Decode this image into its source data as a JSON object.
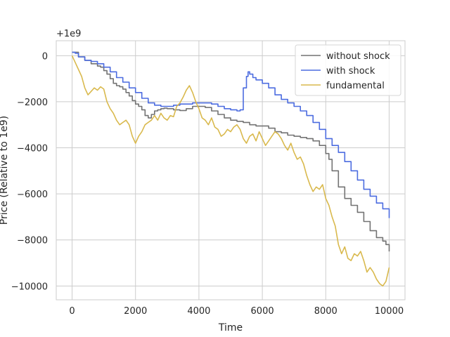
{
  "chart_data": {
    "type": "line",
    "xlabel": "Time",
    "ylabel": "Price (Relative to 1e9)",
    "offset_text": "+1e9",
    "xlim": [
      -500,
      10500
    ],
    "ylim": [
      -10600,
      650
    ],
    "xticks": [
      0,
      2000,
      4000,
      6000,
      8000,
      10000
    ],
    "yticks": [
      0,
      -2000,
      -4000,
      -6000,
      -8000,
      -10000
    ],
    "grid": true,
    "legend_position": "upper-right",
    "series": [
      {
        "name": "without shock",
        "color": "#737373",
        "step": true,
        "points": [
          [
            0,
            150
          ],
          [
            200,
            -50
          ],
          [
            400,
            -200
          ],
          [
            600,
            -350
          ],
          [
            800,
            -450
          ],
          [
            900,
            -500
          ],
          [
            1000,
            -650
          ],
          [
            1100,
            -800
          ],
          [
            1200,
            -1000
          ],
          [
            1300,
            -1200
          ],
          [
            1400,
            -1300
          ],
          [
            1500,
            -1350
          ],
          [
            1600,
            -1450
          ],
          [
            1700,
            -1600
          ],
          [
            1800,
            -1750
          ],
          [
            1900,
            -1950
          ],
          [
            2000,
            -2100
          ],
          [
            2100,
            -2200
          ],
          [
            2200,
            -2350
          ],
          [
            2300,
            -2600
          ],
          [
            2400,
            -2700
          ],
          [
            2500,
            -2550
          ],
          [
            2600,
            -2400
          ],
          [
            2700,
            -2350
          ],
          [
            2800,
            -2300
          ],
          [
            2900,
            -2280
          ],
          [
            3000,
            -2300
          ],
          [
            3200,
            -2350
          ],
          [
            3400,
            -2380
          ],
          [
            3600,
            -2300
          ],
          [
            3800,
            -2200
          ],
          [
            4000,
            -2200
          ],
          [
            4200,
            -2250
          ],
          [
            4400,
            -2400
          ],
          [
            4600,
            -2550
          ],
          [
            4800,
            -2700
          ],
          [
            5000,
            -2800
          ],
          [
            5200,
            -2850
          ],
          [
            5400,
            -2900
          ],
          [
            5600,
            -3000
          ],
          [
            5800,
            -3050
          ],
          [
            6000,
            -3050
          ],
          [
            6200,
            -3150
          ],
          [
            6400,
            -3300
          ],
          [
            6600,
            -3350
          ],
          [
            6800,
            -3450
          ],
          [
            7000,
            -3500
          ],
          [
            7200,
            -3550
          ],
          [
            7400,
            -3600
          ],
          [
            7600,
            -3700
          ],
          [
            7800,
            -3900
          ],
          [
            8000,
            -4250
          ],
          [
            8100,
            -4500
          ],
          [
            8200,
            -5000
          ],
          [
            8400,
            -5700
          ],
          [
            8600,
            -6200
          ],
          [
            8800,
            -6500
          ],
          [
            9000,
            -6800
          ],
          [
            9200,
            -7200
          ],
          [
            9400,
            -7600
          ],
          [
            9600,
            -7900
          ],
          [
            9800,
            -8050
          ],
          [
            9900,
            -8200
          ],
          [
            10000,
            -8500
          ]
        ]
      },
      {
        "name": "with shock",
        "color": "#4c6ce0",
        "step": true,
        "points": [
          [
            0,
            150
          ],
          [
            100,
            100
          ],
          [
            200,
            -50
          ],
          [
            400,
            -200
          ],
          [
            600,
            -250
          ],
          [
            800,
            -350
          ],
          [
            1000,
            -500
          ],
          [
            1200,
            -700
          ],
          [
            1400,
            -950
          ],
          [
            1600,
            -1150
          ],
          [
            1800,
            -1400
          ],
          [
            2000,
            -1600
          ],
          [
            2200,
            -1850
          ],
          [
            2400,
            -2050
          ],
          [
            2600,
            -2150
          ],
          [
            2800,
            -2200
          ],
          [
            3000,
            -2200
          ],
          [
            3200,
            -2150
          ],
          [
            3400,
            -2100
          ],
          [
            3600,
            -2100
          ],
          [
            3800,
            -2050
          ],
          [
            4000,
            -2050
          ],
          [
            4200,
            -2050
          ],
          [
            4400,
            -2100
          ],
          [
            4600,
            -2200
          ],
          [
            4800,
            -2300
          ],
          [
            5000,
            -2350
          ],
          [
            5200,
            -2400
          ],
          [
            5300,
            -2350
          ],
          [
            5400,
            -1400
          ],
          [
            5500,
            -900
          ],
          [
            5550,
            -700
          ],
          [
            5600,
            -800
          ],
          [
            5700,
            -950
          ],
          [
            5800,
            -1050
          ],
          [
            6000,
            -1200
          ],
          [
            6200,
            -1400
          ],
          [
            6400,
            -1700
          ],
          [
            6600,
            -1900
          ],
          [
            6800,
            -2050
          ],
          [
            7000,
            -2200
          ],
          [
            7200,
            -2400
          ],
          [
            7400,
            -2600
          ],
          [
            7600,
            -2900
          ],
          [
            7800,
            -3200
          ],
          [
            8000,
            -3600
          ],
          [
            8200,
            -3900
          ],
          [
            8400,
            -4200
          ],
          [
            8600,
            -4600
          ],
          [
            8800,
            -5000
          ],
          [
            9000,
            -5400
          ],
          [
            9200,
            -5800
          ],
          [
            9400,
            -6100
          ],
          [
            9600,
            -6400
          ],
          [
            9800,
            -6650
          ],
          [
            10000,
            -7050
          ]
        ]
      },
      {
        "name": "fundamental",
        "color": "#d9b94d",
        "step": false,
        "points": [
          [
            0,
            0
          ],
          [
            100,
            -300
          ],
          [
            200,
            -600
          ],
          [
            300,
            -900
          ],
          [
            400,
            -1400
          ],
          [
            500,
            -1700
          ],
          [
            600,
            -1550
          ],
          [
            700,
            -1400
          ],
          [
            800,
            -1500
          ],
          [
            900,
            -1350
          ],
          [
            1000,
            -1450
          ],
          [
            1100,
            -2000
          ],
          [
            1200,
            -2300
          ],
          [
            1300,
            -2500
          ],
          [
            1400,
            -2800
          ],
          [
            1500,
            -3000
          ],
          [
            1600,
            -2900
          ],
          [
            1700,
            -2800
          ],
          [
            1800,
            -3000
          ],
          [
            1900,
            -3500
          ],
          [
            2000,
            -3800
          ],
          [
            2100,
            -3500
          ],
          [
            2200,
            -3300
          ],
          [
            2300,
            -3000
          ],
          [
            2400,
            -2900
          ],
          [
            2500,
            -2800
          ],
          [
            2600,
            -2600
          ],
          [
            2700,
            -2800
          ],
          [
            2800,
            -2500
          ],
          [
            2900,
            -2700
          ],
          [
            3000,
            -2800
          ],
          [
            3100,
            -2600
          ],
          [
            3200,
            -2650
          ],
          [
            3300,
            -2200
          ],
          [
            3400,
            -2050
          ],
          [
            3500,
            -1800
          ],
          [
            3600,
            -1500
          ],
          [
            3700,
            -1300
          ],
          [
            3800,
            -1600
          ],
          [
            3900,
            -2000
          ],
          [
            4000,
            -2300
          ],
          [
            4100,
            -2700
          ],
          [
            4200,
            -2800
          ],
          [
            4300,
            -3000
          ],
          [
            4400,
            -2700
          ],
          [
            4500,
            -3100
          ],
          [
            4600,
            -3200
          ],
          [
            4700,
            -3500
          ],
          [
            4800,
            -3400
          ],
          [
            4900,
            -3200
          ],
          [
            5000,
            -3300
          ],
          [
            5100,
            -3100
          ],
          [
            5200,
            -3000
          ],
          [
            5300,
            -3200
          ],
          [
            5400,
            -3600
          ],
          [
            5500,
            -3800
          ],
          [
            5600,
            -3500
          ],
          [
            5700,
            -3400
          ],
          [
            5800,
            -3700
          ],
          [
            5900,
            -3300
          ],
          [
            6000,
            -3600
          ],
          [
            6100,
            -3900
          ],
          [
            6200,
            -3700
          ],
          [
            6300,
            -3500
          ],
          [
            6400,
            -3300
          ],
          [
            6500,
            -3400
          ],
          [
            6600,
            -3600
          ],
          [
            6700,
            -3900
          ],
          [
            6800,
            -4100
          ],
          [
            6900,
            -3800
          ],
          [
            7000,
            -4200
          ],
          [
            7100,
            -4500
          ],
          [
            7200,
            -4400
          ],
          [
            7300,
            -4700
          ],
          [
            7400,
            -5200
          ],
          [
            7500,
            -5600
          ],
          [
            7600,
            -5900
          ],
          [
            7700,
            -5700
          ],
          [
            7800,
            -5800
          ],
          [
            7900,
            -5600
          ],
          [
            8000,
            -6200
          ],
          [
            8100,
            -6500
          ],
          [
            8200,
            -7000
          ],
          [
            8300,
            -7400
          ],
          [
            8400,
            -8200
          ],
          [
            8500,
            -8600
          ],
          [
            8600,
            -8300
          ],
          [
            8700,
            -8800
          ],
          [
            8800,
            -8900
          ],
          [
            8900,
            -8600
          ],
          [
            9000,
            -8700
          ],
          [
            9100,
            -8500
          ],
          [
            9200,
            -8900
          ],
          [
            9300,
            -9400
          ],
          [
            9400,
            -9200
          ],
          [
            9500,
            -9400
          ],
          [
            9600,
            -9700
          ],
          [
            9700,
            -9900
          ],
          [
            9800,
            -10000
          ],
          [
            9900,
            -9800
          ],
          [
            10000,
            -9200
          ]
        ]
      }
    ]
  }
}
